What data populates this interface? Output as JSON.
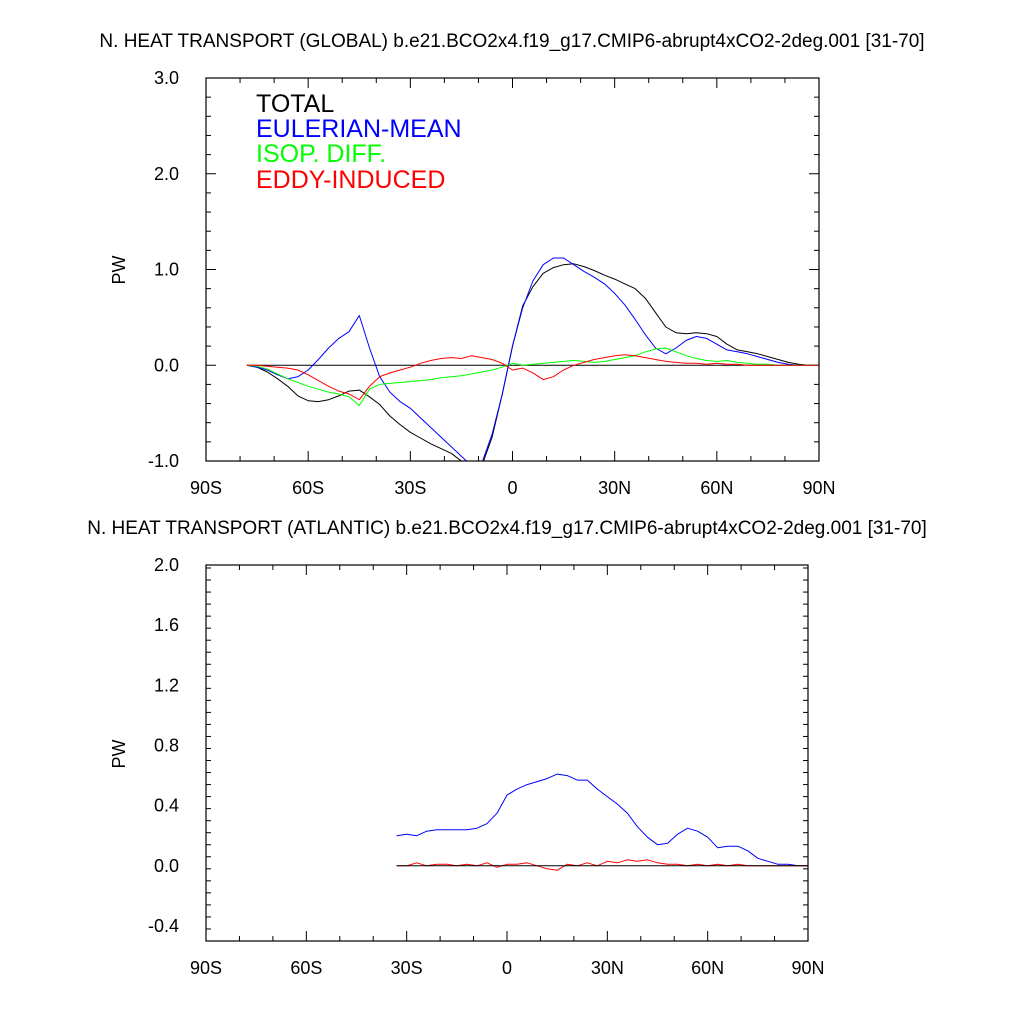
{
  "chart_data": [
    {
      "type": "line",
      "title": "N. HEAT TRANSPORT (GLOBAL) b.e21.BCO2x4.f19_g17.CMIP6-abrupt4xCO2-2deg.001 [31-70]",
      "xlabel": "",
      "ylabel": "PW",
      "xlim": [
        -90,
        90
      ],
      "ylim": [
        -1.0,
        3.0
      ],
      "x_ticks": [
        -90,
        -60,
        -30,
        0,
        30,
        60,
        90
      ],
      "x_tick_labels": [
        "90S",
        "60S",
        "30S",
        "0",
        "30N",
        "60N",
        "90N"
      ],
      "y_ticks": [
        -1.0,
        0.0,
        1.0,
        2.0,
        3.0
      ],
      "y_tick_labels": [
        "-1.0",
        "0.0",
        "1.0",
        "2.0",
        "3.0"
      ],
      "legend_position": "top-left",
      "grid": false,
      "series": [
        {
          "name": "TOTAL",
          "color": "#000000",
          "x": [
            -78,
            -75,
            -72,
            -69,
            -66,
            -63,
            -60,
            -57,
            -54,
            -51,
            -48,
            -45,
            -42,
            -39,
            -36,
            -33,
            -30,
            -27,
            -24,
            -21,
            -18,
            -15,
            -12,
            -9,
            -6,
            -3,
            0,
            3,
            6,
            9,
            12,
            15,
            18,
            21,
            24,
            27,
            30,
            33,
            36,
            39,
            42,
            45,
            48,
            51,
            54,
            57,
            60,
            63,
            66,
            69,
            72,
            75,
            78,
            81,
            84,
            87,
            90
          ],
          "y": [
            0.0,
            -0.02,
            -0.07,
            -0.14,
            -0.22,
            -0.32,
            -0.37,
            -0.38,
            -0.36,
            -0.32,
            -0.27,
            -0.26,
            -0.33,
            -0.41,
            -0.53,
            -0.62,
            -0.7,
            -0.76,
            -0.82,
            -0.87,
            -0.92,
            -1.0,
            -1.05,
            -1.05,
            -0.75,
            -0.3,
            0.2,
            0.62,
            0.82,
            0.96,
            1.02,
            1.05,
            1.06,
            1.03,
            0.99,
            0.94,
            0.9,
            0.85,
            0.8,
            0.7,
            0.55,
            0.4,
            0.34,
            0.33,
            0.34,
            0.33,
            0.3,
            0.22,
            0.16,
            0.14,
            0.12,
            0.09,
            0.06,
            0.03,
            0.01,
            0.0,
            0.0
          ]
        },
        {
          "name": "EULERIAN-MEAN",
          "color": "#0000ff",
          "x": [
            -78,
            -75,
            -72,
            -69,
            -66,
            -63,
            -60,
            -57,
            -54,
            -51,
            -48,
            -45,
            -42,
            -39,
            -36,
            -33,
            -30,
            -27,
            -24,
            -21,
            -18,
            -15,
            -12,
            -9,
            -6,
            -3,
            0,
            3,
            6,
            9,
            12,
            15,
            18,
            21,
            24,
            27,
            30,
            33,
            36,
            39,
            42,
            45,
            48,
            51,
            54,
            57,
            60,
            63,
            66,
            69,
            72,
            75,
            78,
            81,
            84,
            87,
            90
          ],
          "y": [
            0.0,
            -0.02,
            -0.05,
            -0.1,
            -0.14,
            -0.12,
            -0.05,
            0.06,
            0.18,
            0.28,
            0.35,
            0.52,
            0.18,
            -0.12,
            -0.28,
            -0.38,
            -0.45,
            -0.55,
            -0.65,
            -0.75,
            -0.85,
            -0.95,
            -1.05,
            -1.02,
            -0.72,
            -0.3,
            0.2,
            0.6,
            0.88,
            1.05,
            1.12,
            1.12,
            1.05,
            0.98,
            0.92,
            0.85,
            0.75,
            0.63,
            0.48,
            0.32,
            0.18,
            0.12,
            0.18,
            0.26,
            0.3,
            0.28,
            0.22,
            0.16,
            0.14,
            0.12,
            0.09,
            0.06,
            0.03,
            0.01,
            0.0,
            0.0,
            0.0
          ]
        },
        {
          "name": "ISOP. DIFF.",
          "color": "#00ff00",
          "x": [
            -78,
            -75,
            -72,
            -69,
            -66,
            -63,
            -60,
            -57,
            -54,
            -51,
            -48,
            -45,
            -42,
            -39,
            -36,
            -33,
            -30,
            -27,
            -24,
            -21,
            -18,
            -15,
            -12,
            -9,
            -6,
            -3,
            0,
            3,
            6,
            9,
            12,
            15,
            18,
            21,
            24,
            27,
            30,
            33,
            36,
            39,
            42,
            45,
            48,
            51,
            54,
            57,
            60,
            63,
            66,
            69,
            72,
            75,
            78,
            81,
            84,
            87,
            90
          ],
          "y": [
            0.0,
            -0.01,
            -0.04,
            -0.09,
            -0.14,
            -0.18,
            -0.22,
            -0.25,
            -0.28,
            -0.3,
            -0.33,
            -0.42,
            -0.25,
            -0.2,
            -0.19,
            -0.18,
            -0.17,
            -0.16,
            -0.15,
            -0.13,
            -0.12,
            -0.11,
            -0.09,
            -0.07,
            -0.05,
            -0.02,
            0.02,
            0.0,
            0.01,
            0.02,
            0.03,
            0.04,
            0.05,
            0.04,
            0.03,
            0.04,
            0.06,
            0.08,
            0.1,
            0.14,
            0.17,
            0.18,
            0.14,
            0.1,
            0.07,
            0.05,
            0.04,
            0.05,
            0.03,
            0.02,
            0.01,
            0.01,
            0.0,
            0.0,
            0.0,
            0.0,
            0.0
          ]
        },
        {
          "name": "EDDY-INDUCED",
          "color": "#ff0000",
          "x": [
            -78,
            -75,
            -72,
            -69,
            -66,
            -63,
            -60,
            -57,
            -54,
            -51,
            -48,
            -45,
            -42,
            -39,
            -36,
            -33,
            -30,
            -27,
            -24,
            -21,
            -18,
            -15,
            -12,
            -9,
            -6,
            -3,
            0,
            3,
            6,
            9,
            12,
            15,
            18,
            21,
            24,
            27,
            30,
            33,
            36,
            39,
            42,
            45,
            48,
            51,
            54,
            57,
            60,
            63,
            66,
            69,
            72,
            75,
            78,
            81,
            84,
            87,
            90
          ],
          "y": [
            0.0,
            0.0,
            -0.01,
            -0.02,
            -0.03,
            -0.05,
            -0.1,
            -0.16,
            -0.22,
            -0.27,
            -0.3,
            -0.36,
            -0.22,
            -0.12,
            -0.08,
            -0.05,
            -0.02,
            0.02,
            0.05,
            0.07,
            0.08,
            0.07,
            0.1,
            0.08,
            0.06,
            0.02,
            -0.05,
            -0.03,
            -0.08,
            -0.15,
            -0.12,
            -0.05,
            0.0,
            0.03,
            0.06,
            0.08,
            0.1,
            0.11,
            0.1,
            0.08,
            0.06,
            0.04,
            0.03,
            0.02,
            0.02,
            0.01,
            0.02,
            0.01,
            0.01,
            0.0,
            0.0,
            0.0,
            0.0,
            0.0,
            0.0,
            0.0,
            0.0
          ]
        }
      ]
    },
    {
      "type": "line",
      "title": "N. HEAT TRANSPORT (ATLANTIC) b.e21.BCO2x4.f19_g17.CMIP6-abrupt4xCO2-2deg.001 [31-70]",
      "xlabel": "",
      "ylabel": "PW",
      "xlim": [
        -90,
        90
      ],
      "ylim": [
        -0.5,
        2.0
      ],
      "x_ticks": [
        -90,
        -60,
        -30,
        0,
        30,
        60,
        90
      ],
      "x_tick_labels": [
        "90S",
        "60S",
        "30S",
        "0",
        "30N",
        "60N",
        "90N"
      ],
      "y_ticks": [
        -0.4,
        0.0,
        0.4,
        0.8,
        1.2,
        1.6,
        2.0
      ],
      "y_tick_labels": [
        "-0.4",
        "0.0",
        "0.4",
        "0.8",
        "1.2",
        "1.6",
        "2.0"
      ],
      "grid": false,
      "series": [
        {
          "color": "#0000ff",
          "x": [
            -33,
            -30,
            -27,
            -24,
            -21,
            -18,
            -15,
            -12,
            -9,
            -6,
            -3,
            0,
            3,
            6,
            9,
            12,
            15,
            18,
            21,
            24,
            27,
            30,
            33,
            36,
            39,
            42,
            45,
            48,
            51,
            54,
            57,
            60,
            63,
            66,
            69,
            72,
            75,
            78,
            81,
            84,
            87,
            90
          ],
          "y": [
            0.2,
            0.21,
            0.2,
            0.23,
            0.24,
            0.24,
            0.24,
            0.24,
            0.25,
            0.28,
            0.35,
            0.47,
            0.51,
            0.54,
            0.56,
            0.58,
            0.61,
            0.6,
            0.57,
            0.57,
            0.51,
            0.46,
            0.41,
            0.35,
            0.26,
            0.19,
            0.14,
            0.15,
            0.21,
            0.25,
            0.23,
            0.19,
            0.12,
            0.13,
            0.13,
            0.1,
            0.05,
            0.03,
            0.01,
            0.01,
            0.0,
            0.0
          ]
        },
        {
          "color": "#ff0000",
          "x": [
            -33,
            -30,
            -27,
            -24,
            -21,
            -18,
            -15,
            -12,
            -9,
            -6,
            -3,
            0,
            3,
            6,
            9,
            12,
            15,
            18,
            21,
            24,
            27,
            30,
            33,
            36,
            39,
            42,
            45,
            48,
            51,
            54,
            57,
            60,
            63,
            66,
            69,
            72,
            75,
            78,
            81,
            84,
            87,
            90
          ],
          "y": [
            0.0,
            0.0,
            0.02,
            0.0,
            0.01,
            0.01,
            0.0,
            0.01,
            0.0,
            0.02,
            -0.01,
            0.01,
            0.01,
            0.02,
            0.0,
            -0.02,
            -0.03,
            0.01,
            0.0,
            0.02,
            0.0,
            0.03,
            0.02,
            0.04,
            0.03,
            0.04,
            0.02,
            0.01,
            0.01,
            0.0,
            0.01,
            0.0,
            0.01,
            0.0,
            0.01,
            0.0,
            0.0,
            0.0,
            0.0,
            0.0,
            0.0,
            0.0
          ]
        },
        {
          "color": "#000000",
          "x": [
            -33,
            90
          ],
          "y": [
            0.0,
            0.0
          ]
        }
      ]
    }
  ]
}
